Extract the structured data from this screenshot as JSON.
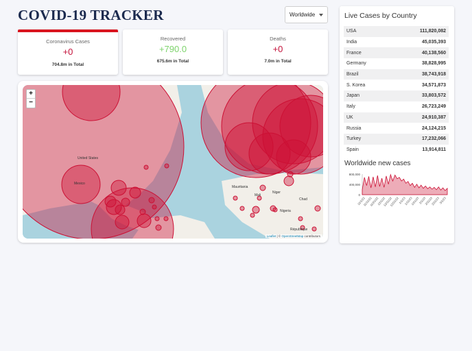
{
  "header": {
    "title": "COVID-19 TRACKER"
  },
  "country_select": {
    "value": "Worldwide"
  },
  "cards": [
    {
      "label": "Coronavirus Cases",
      "new": "+0",
      "total": "704.8m in Total",
      "active": true
    },
    {
      "label": "Recovered",
      "new": "+790.0",
      "total": "675.6m in Total",
      "active": false
    },
    {
      "label": "Deaths",
      "new": "+0",
      "total": "7.0m in Total",
      "active": false
    }
  ],
  "map": {
    "zoom_in": "+",
    "zoom_out": "−",
    "attribution_leaflet": "Leaflet",
    "attribution_sep": " | © ",
    "attribution_osm": "OpenStreetMap",
    "attribution_tail": " contributors",
    "labels": {
      "us": "United States",
      "mexico": "Mexico",
      "mauritania": "Mauritania",
      "mali": "Mali",
      "niger": "Niger",
      "chad": "Chad",
      "nigeria": "Nigeria",
      "republique": "République"
    },
    "colors": {
      "water": "#aad3df",
      "land": "#f2efe9",
      "circle_fill": "#cc1034",
      "circle_stroke": "#cc1034"
    }
  },
  "live_cases": {
    "title": "Live Cases by Country",
    "rows": [
      {
        "country": "USA",
        "cases": "111,820,082"
      },
      {
        "country": "India",
        "cases": "45,035,393"
      },
      {
        "country": "France",
        "cases": "40,138,560"
      },
      {
        "country": "Germany",
        "cases": "38,828,995"
      },
      {
        "country": "Brazil",
        "cases": "38,743,918"
      },
      {
        "country": "S. Korea",
        "cases": "34,571,873"
      },
      {
        "country": "Japan",
        "cases": "33,803,572"
      },
      {
        "country": "Italy",
        "cases": "26,723,249"
      },
      {
        "country": "UK",
        "cases": "24,910,387"
      },
      {
        "country": "Russia",
        "cases": "24,124,215"
      },
      {
        "country": "Turkey",
        "cases": "17,232,066"
      },
      {
        "country": "Spain",
        "cases": "13,914,811"
      }
    ]
  },
  "chart_data": {
    "type": "line",
    "title": "Worldwide new cases",
    "xlabel": "",
    "ylabel": "",
    "ylim": [
      0,
      450000
    ],
    "yticks": [
      "800,000",
      "400,000",
      "0"
    ],
    "xticks": [
      "11/1/22",
      "11/11/22",
      "11/21/22",
      "12/1/22",
      "12/11/22",
      "12/21/22",
      "1/1/23",
      "1/11/23",
      "1/21/23",
      "2/1/23",
      "2/11/23",
      "2/21/23",
      "3/1/23"
    ],
    "series": [
      {
        "values": [
          110000,
          380000,
          200000,
          400000,
          150000,
          390000,
          170000,
          420000,
          180000,
          360000,
          160000,
          410000,
          230000,
          440000,
          300000,
          430000,
          350000,
          380000,
          300000,
          340000,
          250000,
          290000,
          200000,
          250000,
          160000,
          230000,
          150000,
          210000,
          140000,
          190000,
          130000,
          170000,
          120000,
          160000,
          110000,
          170000,
          100000,
          150000,
          90000,
          140000
        ]
      }
    ],
    "color": "#cc1034"
  }
}
